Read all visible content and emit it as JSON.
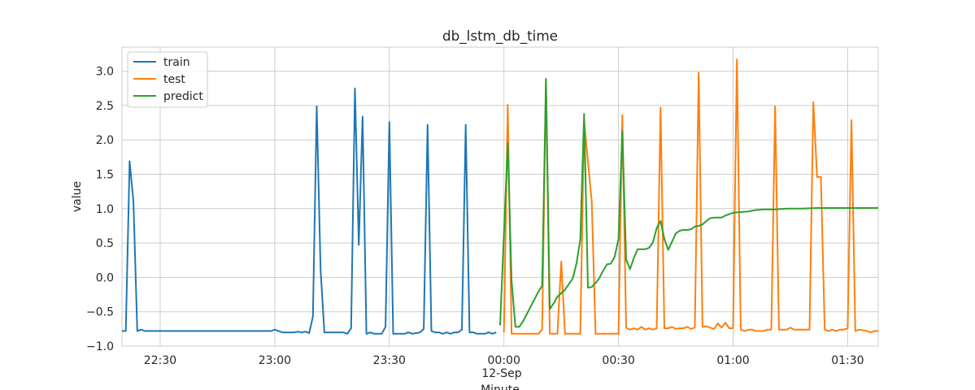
{
  "chart_data": {
    "type": "line",
    "title": "db_lstm_db_time",
    "xlabel": "Minute",
    "ylabel": "value",
    "x_date_label": "12-Sep",
    "x_ticks": [
      "22:30",
      "23:00",
      "23:30",
      "00:00",
      "00:30",
      "01:00",
      "01:30"
    ],
    "y_ticks": [
      "−1.0",
      "−0.5",
      "0.0",
      "0.5",
      "1.0",
      "1.5",
      "2.0",
      "2.5",
      "3.0"
    ],
    "xlim": [
      "22:20",
      "01:38"
    ],
    "ylim": [
      -1.0,
      3.35
    ],
    "grid": true,
    "legend_position": "top-left",
    "series": [
      {
        "name": "train",
        "color": "#1f77b4",
        "points": [
          [
            "22:20",
            -0.78
          ],
          [
            "22:21",
            -0.78
          ],
          [
            "22:22",
            1.69
          ],
          [
            "22:23",
            1.1
          ],
          [
            "22:24",
            -0.78
          ],
          [
            "22:25",
            -0.76
          ],
          [
            "22:26",
            -0.78
          ],
          [
            "22:40",
            -0.78
          ],
          [
            "22:50",
            -0.78
          ],
          [
            "22:59",
            -0.78
          ],
          [
            "23:00",
            -0.76
          ],
          [
            "23:01",
            -0.78
          ],
          [
            "23:02",
            -0.8
          ],
          [
            "23:03",
            -0.8
          ],
          [
            "23:04",
            -0.8
          ],
          [
            "23:05",
            -0.8
          ],
          [
            "23:06",
            -0.79
          ],
          [
            "23:07",
            -0.8
          ],
          [
            "23:08",
            -0.79
          ],
          [
            "23:09",
            -0.81
          ],
          [
            "23:10",
            -0.57
          ],
          [
            "23:11",
            2.49
          ],
          [
            "23:12",
            0.12
          ],
          [
            "23:13",
            -0.8
          ],
          [
            "23:18",
            -0.8
          ],
          [
            "23:19",
            -0.82
          ],
          [
            "23:20",
            -0.74
          ],
          [
            "23:21",
            2.75
          ],
          [
            "23:22",
            0.47
          ],
          [
            "23:23",
            2.34
          ],
          [
            "23:24",
            -0.82
          ],
          [
            "23:25",
            -0.8
          ],
          [
            "23:26",
            -0.82
          ],
          [
            "23:28",
            -0.82
          ],
          [
            "23:29",
            -0.72
          ],
          [
            "23:30",
            2.26
          ],
          [
            "23:31",
            -0.82
          ],
          [
            "23:34",
            -0.82
          ],
          [
            "23:35",
            -0.8
          ],
          [
            "23:36",
            -0.82
          ],
          [
            "23:38",
            -0.8
          ],
          [
            "23:39",
            -0.75
          ],
          [
            "23:40",
            2.22
          ],
          [
            "23:41",
            -0.78
          ],
          [
            "23:42",
            -0.8
          ],
          [
            "23:43",
            -0.8
          ],
          [
            "23:44",
            -0.82
          ],
          [
            "23:45",
            -0.8
          ],
          [
            "23:46",
            -0.82
          ],
          [
            "23:47",
            -0.8
          ],
          [
            "23:48",
            -0.8
          ],
          [
            "23:49",
            -0.76
          ],
          [
            "23:50",
            2.22
          ],
          [
            "23:51",
            -0.8
          ],
          [
            "23:52",
            -0.8
          ],
          [
            "23:53",
            -0.82
          ],
          [
            "23:55",
            -0.82
          ],
          [
            "23:56",
            -0.8
          ],
          [
            "23:57",
            -0.82
          ],
          [
            "23:58",
            -0.8
          ]
        ]
      },
      {
        "name": "test",
        "color": "#ff7f0e",
        "points": [
          [
            "00:00",
            -0.8
          ],
          [
            "00:01",
            2.51
          ],
          [
            "00:02",
            -0.82
          ],
          [
            "00:05",
            -0.82
          ],
          [
            "00:09",
            -0.82
          ],
          [
            "00:10",
            -0.76
          ],
          [
            "00:11",
            2.87
          ],
          [
            "00:12",
            -0.82
          ],
          [
            "00:14",
            -0.82
          ],
          [
            "00:15",
            0.23
          ],
          [
            "00:16",
            -0.82
          ],
          [
            "00:20",
            -0.82
          ],
          [
            "00:21",
            2.28
          ],
          [
            "00:23",
            1.1
          ],
          [
            "00:24",
            -0.82
          ],
          [
            "00:30",
            -0.82
          ],
          [
            "00:31",
            2.36
          ],
          [
            "00:32",
            -0.73
          ],
          [
            "00:33",
            -0.76
          ],
          [
            "00:34",
            -0.74
          ],
          [
            "00:35",
            -0.76
          ],
          [
            "00:36",
            -0.72
          ],
          [
            "00:37",
            -0.76
          ],
          [
            "00:38",
            -0.74
          ],
          [
            "00:39",
            -0.76
          ],
          [
            "00:40",
            -0.74
          ],
          [
            "00:41",
            2.47
          ],
          [
            "00:42",
            -0.74
          ],
          [
            "00:43",
            -0.74
          ],
          [
            "00:44",
            -0.72
          ],
          [
            "00:45",
            -0.75
          ],
          [
            "00:46",
            -0.74
          ],
          [
            "00:47",
            -0.74
          ],
          [
            "00:48",
            -0.72
          ],
          [
            "00:49",
            -0.75
          ],
          [
            "00:50",
            -0.73
          ],
          [
            "00:51",
            2.98
          ],
          [
            "00:52",
            -0.72
          ],
          [
            "00:53",
            -0.71
          ],
          [
            "00:54",
            -0.73
          ],
          [
            "00:55",
            -0.75
          ],
          [
            "00:56",
            -0.67
          ],
          [
            "00:57",
            -0.73
          ],
          [
            "00:58",
            -0.66
          ],
          [
            "00:59",
            -0.74
          ],
          [
            "01:00",
            -0.74
          ],
          [
            "01:01",
            3.17
          ],
          [
            "01:02",
            -0.76
          ],
          [
            "01:03",
            -0.78
          ],
          [
            "01:04",
            -0.76
          ],
          [
            "01:05",
            -0.76
          ],
          [
            "01:06",
            -0.78
          ],
          [
            "01:07",
            -0.78
          ],
          [
            "01:08",
            -0.78
          ],
          [
            "01:09",
            -0.76
          ],
          [
            "01:10",
            -0.76
          ],
          [
            "01:11",
            2.49
          ],
          [
            "01:12",
            -0.76
          ],
          [
            "01:13",
            -0.76
          ],
          [
            "01:14",
            -0.76
          ],
          [
            "01:15",
            -0.73
          ],
          [
            "01:16",
            -0.76
          ],
          [
            "01:17",
            -0.76
          ],
          [
            "01:20",
            -0.76
          ],
          [
            "01:21",
            2.55
          ],
          [
            "01:22",
            1.46
          ],
          [
            "01:23",
            1.46
          ],
          [
            "01:24",
            -0.76
          ],
          [
            "01:25",
            -0.78
          ],
          [
            "01:26",
            -0.76
          ],
          [
            "01:27",
            -0.78
          ],
          [
            "01:28",
            -0.76
          ],
          [
            "01:29",
            -0.76
          ],
          [
            "01:30",
            -0.74
          ],
          [
            "01:31",
            2.29
          ],
          [
            "01:32",
            -0.78
          ],
          [
            "01:33",
            -0.76
          ],
          [
            "01:35",
            -0.78
          ],
          [
            "01:36",
            -0.8
          ],
          [
            "01:37",
            -0.78
          ],
          [
            "01:38",
            -0.78
          ]
        ]
      },
      {
        "name": "predict",
        "color": "#2ca02c",
        "points": [
          [
            "23:59",
            -0.7
          ],
          [
            "00:01",
            1.96
          ],
          [
            "00:02",
            -0.05
          ],
          [
            "00:03",
            -0.72
          ],
          [
            "00:04",
            -0.72
          ],
          [
            "00:05",
            -0.64
          ],
          [
            "00:09",
            -0.21
          ],
          [
            "00:10",
            -0.12
          ],
          [
            "00:11",
            2.89
          ],
          [
            "00:12",
            -0.46
          ],
          [
            "00:13",
            -0.38
          ],
          [
            "00:14",
            -0.28
          ],
          [
            "00:16",
            -0.18
          ],
          [
            "00:18",
            -0.02
          ],
          [
            "00:19",
            0.2
          ],
          [
            "00:20",
            0.55
          ],
          [
            "00:21",
            2.38
          ],
          [
            "00:22",
            -0.15
          ],
          [
            "00:23",
            -0.14
          ],
          [
            "00:24",
            -0.08
          ],
          [
            "00:25",
            -0.01
          ],
          [
            "00:26",
            0.1
          ],
          [
            "00:27",
            0.19
          ],
          [
            "00:28",
            0.2
          ],
          [
            "00:29",
            0.3
          ],
          [
            "00:30",
            0.56
          ],
          [
            "00:31",
            2.13
          ],
          [
            "00:32",
            0.26
          ],
          [
            "00:33",
            0.12
          ],
          [
            "00:34",
            0.28
          ],
          [
            "00:35",
            0.41
          ],
          [
            "00:37",
            0.41
          ],
          [
            "00:38",
            0.43
          ],
          [
            "00:39",
            0.51
          ],
          [
            "00:40",
            0.72
          ],
          [
            "00:41",
            0.82
          ],
          [
            "00:42",
            0.56
          ],
          [
            "00:43",
            0.4
          ],
          [
            "00:44",
            0.52
          ],
          [
            "00:45",
            0.64
          ],
          [
            "00:46",
            0.68
          ],
          [
            "00:47",
            0.69
          ],
          [
            "00:48",
            0.69
          ],
          [
            "00:49",
            0.7
          ],
          [
            "00:50",
            0.74
          ],
          [
            "00:51",
            0.75
          ],
          [
            "00:52",
            0.77
          ],
          [
            "00:53",
            0.82
          ],
          [
            "00:54",
            0.86
          ],
          [
            "00:55",
            0.87
          ],
          [
            "00:56",
            0.87
          ],
          [
            "00:57",
            0.87
          ],
          [
            "00:58",
            0.9
          ],
          [
            "00:59",
            0.92
          ],
          [
            "01:00",
            0.94
          ],
          [
            "01:02",
            0.95
          ],
          [
            "01:04",
            0.96
          ],
          [
            "01:06",
            0.98
          ],
          [
            "01:08",
            0.99
          ],
          [
            "01:11",
            0.99
          ],
          [
            "01:14",
            1.0
          ],
          [
            "01:18",
            1.0
          ],
          [
            "01:22",
            1.01
          ],
          [
            "01:26",
            1.01
          ],
          [
            "01:30",
            1.01
          ],
          [
            "01:34",
            1.01
          ],
          [
            "01:38",
            1.01
          ]
        ]
      }
    ]
  }
}
